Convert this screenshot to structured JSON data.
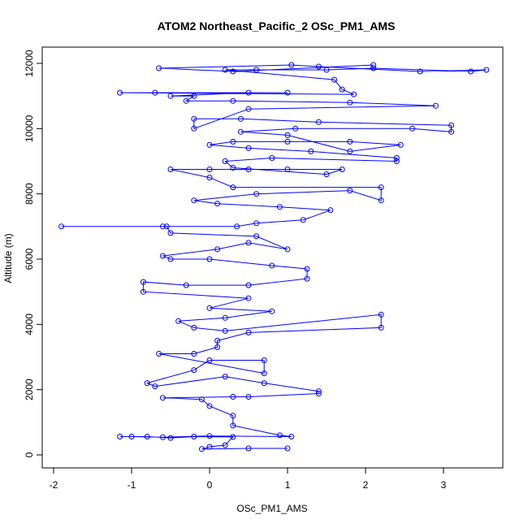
{
  "chart_data": {
    "type": "scatter",
    "title": "ATOM2 Northeast_Pacific_2 OSc_PM1_AMS",
    "xlabel": "OSc_PM1_AMS",
    "ylabel": "Altitude (m)",
    "xlim": [
      -2,
      3.5
    ],
    "ylim": [
      0,
      12000
    ],
    "xticks": [
      "-2",
      "-1",
      "0",
      "1",
      "2",
      "3"
    ],
    "xtick_values": [
      -2,
      -1,
      0,
      1,
      2,
      3
    ],
    "yticks": [
      "0",
      "2000",
      "4000",
      "6000",
      "8000",
      "10000",
      "12000"
    ],
    "ytick_values": [
      0,
      2000,
      4000,
      6000,
      8000,
      10000,
      12000
    ],
    "grid": false,
    "color": "#0000ff",
    "marker": "open-circle",
    "connected": true,
    "points": [
      [
        1.0,
        200
      ],
      [
        0.5,
        200
      ],
      [
        -0.1,
        180
      ],
      [
        0.0,
        250
      ],
      [
        0.2,
        300
      ],
      [
        0.3,
        550
      ],
      [
        -0.2,
        560
      ],
      [
        -0.5,
        520
      ],
      [
        -0.8,
        560
      ],
      [
        -1.15,
        560
      ],
      [
        -1.0,
        560
      ],
      [
        -0.6,
        540
      ],
      [
        0.0,
        580
      ],
      [
        1.05,
        560
      ],
      [
        0.9,
        600
      ],
      [
        0.3,
        900
      ],
      [
        0.3,
        1200
      ],
      [
        0.0,
        1500
      ],
      [
        -0.1,
        1700
      ],
      [
        -0.6,
        1750
      ],
      [
        0.3,
        1780
      ],
      [
        0.5,
        1780
      ],
      [
        1.4,
        1880
      ],
      [
        1.4,
        1950
      ],
      [
        0.7,
        2200
      ],
      [
        0.2,
        2400
      ],
      [
        -0.7,
        2100
      ],
      [
        -0.8,
        2200
      ],
      [
        -0.2,
        2600
      ],
      [
        0.0,
        2900
      ],
      [
        0.7,
        2900
      ],
      [
        0.7,
        2500
      ],
      [
        -0.65,
        3100
      ],
      [
        -0.2,
        3100
      ],
      [
        0.1,
        3300
      ],
      [
        0.1,
        3500
      ],
      [
        0.5,
        3750
      ],
      [
        2.2,
        3900
      ],
      [
        2.2,
        4300
      ],
      [
        0.2,
        3800
      ],
      [
        -0.2,
        3900
      ],
      [
        -0.4,
        4100
      ],
      [
        0.2,
        4200
      ],
      [
        0.8,
        4400
      ],
      [
        0.0,
        4500
      ],
      [
        0.5,
        4800
      ],
      [
        -0.85,
        5000
      ],
      [
        -0.85,
        5300
      ],
      [
        -0.3,
        5200
      ],
      [
        0.5,
        5200
      ],
      [
        1.25,
        5400
      ],
      [
        1.25,
        5700
      ],
      [
        0.8,
        5800
      ],
      [
        0.0,
        6000
      ],
      [
        -0.5,
        6000
      ],
      [
        -0.6,
        6100
      ],
      [
        0.1,
        6300
      ],
      [
        0.5,
        6500
      ],
      [
        1.0,
        6300
      ],
      [
        0.6,
        6700
      ],
      [
        -0.5,
        6800
      ],
      [
        -0.55,
        7000
      ],
      [
        -1.9,
        7000
      ],
      [
        -0.6,
        7000
      ],
      [
        0.35,
        7000
      ],
      [
        0.6,
        7100
      ],
      [
        1.2,
        7200
      ],
      [
        1.55,
        7500
      ],
      [
        0.9,
        7600
      ],
      [
        0.1,
        7700
      ],
      [
        -0.2,
        7800
      ],
      [
        0.6,
        8000
      ],
      [
        1.8,
        8100
      ],
      [
        2.2,
        7800
      ],
      [
        2.2,
        8200
      ],
      [
        0.3,
        8200
      ],
      [
        0.0,
        8500
      ],
      [
        -0.5,
        8750
      ],
      [
        0.0,
        8750
      ],
      [
        0.5,
        8750
      ],
      [
        1.0,
        8750
      ],
      [
        1.7,
        8750
      ],
      [
        1.5,
        8600
      ],
      [
        0.3,
        8800
      ],
      [
        0.2,
        9000
      ],
      [
        0.8,
        9100
      ],
      [
        2.4,
        9000
      ],
      [
        2.4,
        9100
      ],
      [
        1.3,
        9300
      ],
      [
        0.5,
        9400
      ],
      [
        0.0,
        9500
      ],
      [
        0.3,
        9600
      ],
      [
        1.0,
        9600
      ],
      [
        1.8,
        9600
      ],
      [
        2.45,
        9500
      ],
      [
        1.8,
        9300
      ],
      [
        1.0,
        9800
      ],
      [
        0.4,
        9900
      ],
      [
        1.1,
        10000
      ],
      [
        2.6,
        10000
      ],
      [
        3.1,
        9900
      ],
      [
        3.1,
        10100
      ],
      [
        1.4,
        10200
      ],
      [
        0.4,
        10300
      ],
      [
        -0.2,
        10300
      ],
      [
        -0.2,
        10000
      ],
      [
        0.5,
        10600
      ],
      [
        2.9,
        10700
      ],
      [
        1.8,
        10800
      ],
      [
        0.3,
        10850
      ],
      [
        -0.3,
        10850
      ],
      [
        -0.2,
        11000
      ],
      [
        -0.5,
        11000
      ],
      [
        0.5,
        11100
      ],
      [
        1.0,
        11100
      ],
      [
        -0.7,
        11100
      ],
      [
        -1.15,
        11100
      ],
      [
        1.85,
        11050
      ],
      [
        1.7,
        11200
      ],
      [
        1.6,
        11500
      ],
      [
        0.2,
        11800
      ],
      [
        0.6,
        11800
      ],
      [
        1.5,
        11800
      ],
      [
        2.1,
        11850
      ],
      [
        3.35,
        11750
      ],
      [
        3.55,
        11800
      ],
      [
        2.7,
        11750
      ],
      [
        1.4,
        11900
      ],
      [
        1.05,
        11950
      ],
      [
        -0.65,
        11850
      ],
      [
        0.3,
        11750
      ],
      [
        2.1,
        11950
      ]
    ]
  }
}
